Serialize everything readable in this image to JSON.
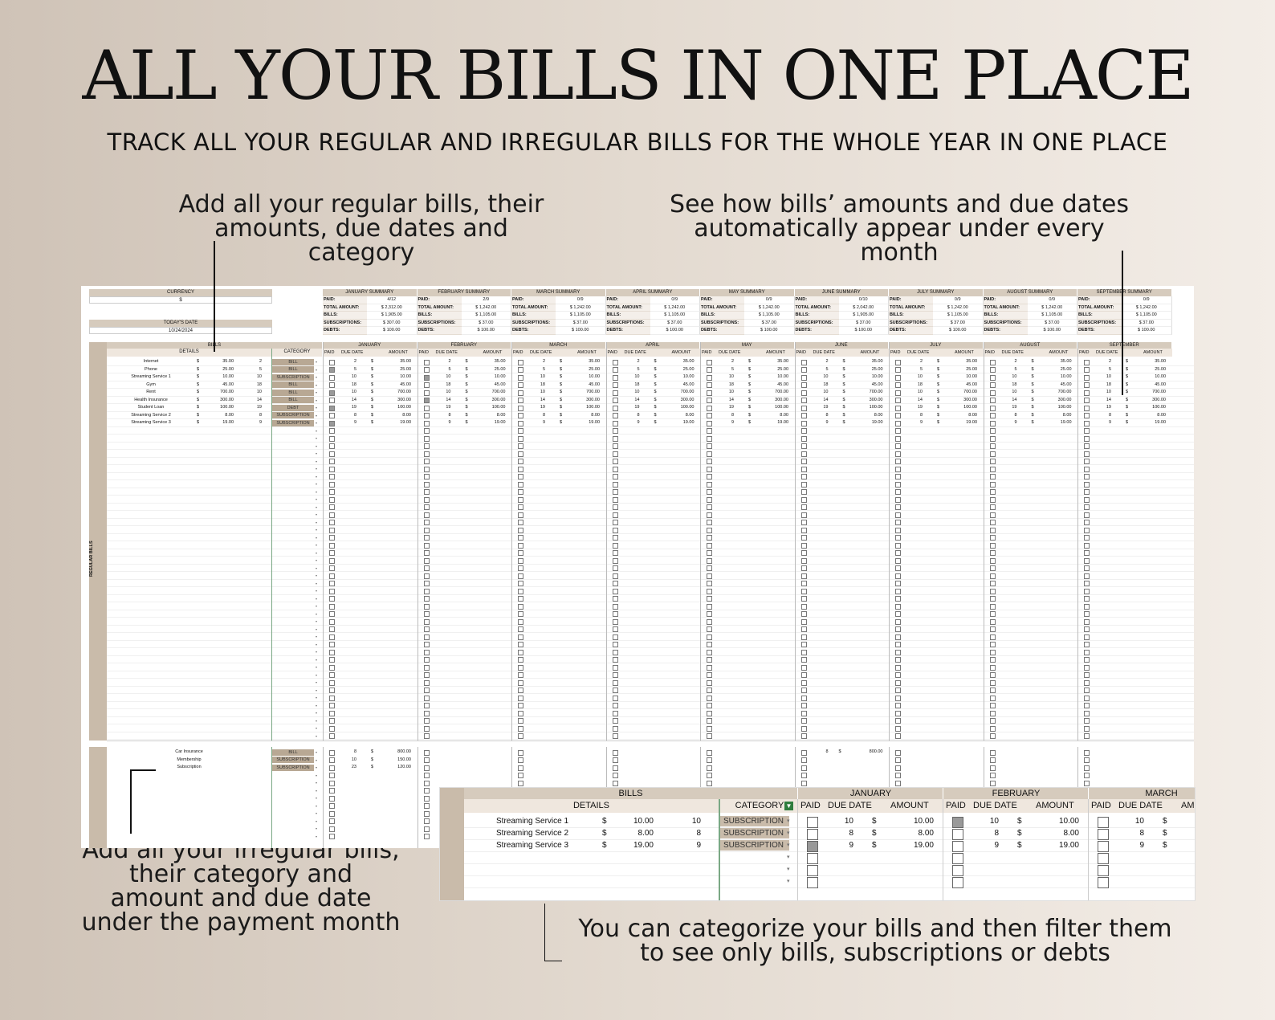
{
  "headline": "ALL YOUR BILLS IN ONE PLACE",
  "subheadline": "TRACK ALL YOUR REGULAR AND IRREGULAR BILLS FOR THE WHOLE YEAR IN ONE PLACE",
  "notes": {
    "top_left": "Add all your regular bills, their amounts, due dates and category",
    "top_right": "See how bills’ amounts and due dates automatically appear under every month",
    "bottom_left": "Add all your irregular bills, their category and amount and due date under the payment month",
    "bottom_right": "You can categorize your bills and then filter them to see only bills, subscriptions or debts"
  },
  "sheet": {
    "currency_label": "CURRENCY",
    "currency_value": "$",
    "today_label": "TODAY'S DATE",
    "today_value": "10/24/2024",
    "bills_label": "BILLS",
    "details_label": "DETAILS",
    "category_label": "CATEGORY",
    "regular_bills_label": "REGULAR BILLS",
    "col_paid": "PAID",
    "col_due": "DUE DATE",
    "col_amount": "AMOUNT",
    "summary_labels": [
      "PAID:",
      "TOTAL AMOUNT:",
      "BILLS:",
      "SUBSCRIPTIONS:",
      "DEBTS:"
    ],
    "summaries": [
      {
        "title": "JANUARY SUMMARY",
        "vals": [
          "4/12",
          "$ 2,312.00",
          "$ 1,905.00",
          "$ 307.00",
          "$ 100.00"
        ]
      },
      {
        "title": "FEBRUARY SUMMARY",
        "vals": [
          "2/9",
          "$ 1,242.00",
          "$ 1,105.00",
          "$ 37.00",
          "$ 100.00"
        ]
      },
      {
        "title": "MARCH SUMMARY",
        "vals": [
          "0/9",
          "$ 1,242.00",
          "$ 1,105.00",
          "$ 37.00",
          "$ 100.00"
        ]
      },
      {
        "title": "APRIL SUMMARY",
        "vals": [
          "0/9",
          "$ 1,242.00",
          "$ 1,105.00",
          "$ 37.00",
          "$ 100.00"
        ]
      },
      {
        "title": "MAY SUMMARY",
        "vals": [
          "0/9",
          "$ 1,242.00",
          "$ 1,105.00",
          "$ 37.00",
          "$ 100.00"
        ]
      },
      {
        "title": "JUNE SUMMARY",
        "vals": [
          "0/10",
          "$ 2,042.00",
          "$ 1,905.00",
          "$ 37.00",
          "$ 100.00"
        ]
      },
      {
        "title": "JULY SUMMARY",
        "vals": [
          "0/9",
          "$ 1,242.00",
          "$ 1,105.00",
          "$ 37.00",
          "$ 100.00"
        ]
      },
      {
        "title": "AUGUST SUMMARY",
        "vals": [
          "0/9",
          "$ 1,242.00",
          "$ 1,105.00",
          "$ 37.00",
          "$ 100.00"
        ]
      },
      {
        "title": "SEPTEMBER SUMMARY",
        "vals": [
          "0/9",
          "$ 1,242.00",
          "$ 1,105.00",
          "$ 37.00",
          "$ 100.00"
        ]
      }
    ],
    "months": [
      "JANUARY",
      "FEBRUARY",
      "MARCH",
      "APRIL",
      "MAY",
      "JUNE",
      "JULY",
      "AUGUST",
      "SEPTEMBER"
    ],
    "regular": [
      {
        "name": "Internet",
        "amount": "35.00",
        "due": "2",
        "cat": "BILL"
      },
      {
        "name": "Phone",
        "amount": "25.00",
        "due": "5",
        "cat": "BILL"
      },
      {
        "name": "Streaming Service 1",
        "amount": "10.00",
        "due": "10",
        "cat": "SUBSCRIPTION"
      },
      {
        "name": "Gym",
        "amount": "45.00",
        "due": "18",
        "cat": "BILL"
      },
      {
        "name": "Rent",
        "amount": "700.00",
        "due": "10",
        "cat": "BILL"
      },
      {
        "name": "Health Insurance",
        "amount": "300.00",
        "due": "14",
        "cat": "BILL"
      },
      {
        "name": "Student Loan",
        "amount": "100.00",
        "due": "19",
        "cat": "DEBT"
      },
      {
        "name": "Streaming Service 2",
        "amount": "8.00",
        "due": "8",
        "cat": "SUBSCRIPTION"
      },
      {
        "name": "Streaming Service 3",
        "amount": "19.00",
        "due": "9",
        "cat": "SUBSCRIPTION"
      }
    ],
    "jan_paid": [
      false,
      true,
      false,
      false,
      true,
      false,
      true,
      false,
      true
    ],
    "feb_paid": [
      false,
      false,
      true,
      false,
      false,
      true,
      false,
      false,
      false
    ],
    "irregular": [
      {
        "name": "Car Insurance",
        "cat": "BILL",
        "jan_due": "8",
        "jan_amount": "800.00"
      },
      {
        "name": "Membership",
        "cat": "SUBSCRIPTION",
        "jan_due": "10",
        "jan_amount": "150.00"
      },
      {
        "name": "Subscription",
        "cat": "SUBSCRIPTION",
        "jan_due": "23",
        "jan_amount": "120.00"
      }
    ],
    "june_irregular": {
      "due": "8",
      "amount": "800.00"
    }
  },
  "zoom": {
    "bills_label": "BILLS",
    "details_label": "DETAILS",
    "category_label": "CATEGORY",
    "months": [
      "JANUARY",
      "FEBRUARY",
      "MARCH"
    ],
    "col_paid": "PAID",
    "col_due": "DUE DATE",
    "col_amount": "AMOUNT",
    "rows": [
      {
        "name": "Streaming Service 1",
        "amount": "10.00",
        "due": "10",
        "cat": "SUBSCRIPTION",
        "jan": false,
        "feb": true,
        "mar": false
      },
      {
        "name": "Streaming Service 2",
        "amount": "8.00",
        "due": "8",
        "cat": "SUBSCRIPTION",
        "jan": false,
        "feb": false,
        "mar": false
      },
      {
        "name": "Streaming Service 3",
        "amount": "19.00",
        "due": "9",
        "cat": "SUBSCRIPTION",
        "jan": true,
        "feb": false,
        "mar": false
      }
    ]
  }
}
